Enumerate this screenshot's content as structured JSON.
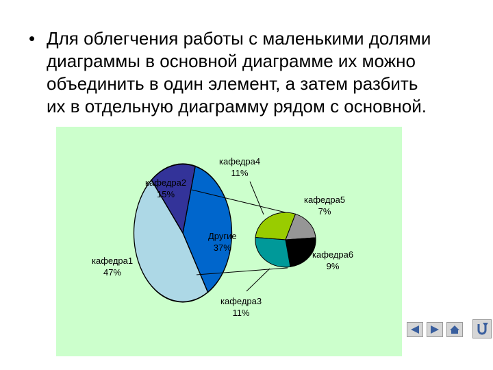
{
  "slide": {
    "bullet": "•",
    "lines": [
      "Для облегчения работы с маленькими долями",
      "диаграммы в основной диаграмме их можно",
      "объединить в один элемент, а затем разбить",
      "их в отдельную диаграмму рядом с основной."
    ]
  },
  "chart_data": {
    "type": "pie",
    "subtype": "pie-of-pie",
    "main": {
      "slices": [
        {
          "label": "кафедра1",
          "value": 47,
          "value_label": "47%",
          "color": "#add8e6"
        },
        {
          "label": "кафедра2",
          "value": 15,
          "value_label": "15%",
          "color": "#333399"
        },
        {
          "label": "Другие",
          "value": 37,
          "value_label": "37%",
          "color": "#0066cc"
        }
      ]
    },
    "secondary": {
      "slices": [
        {
          "label": "кафедра4",
          "value": 11,
          "value_label": "11%",
          "color": "#99cc00"
        },
        {
          "label": "кафедра5",
          "value": 7,
          "value_label": "7%",
          "color": "#969696"
        },
        {
          "label": "кафедра6",
          "value": 9,
          "value_label": "9%",
          "color": "#000000"
        },
        {
          "label": "кафедра3",
          "value": 11,
          "value_label": "11%",
          "color": "#009999"
        }
      ]
    },
    "background": "#ccffcc",
    "legend": "none"
  },
  "nav": {
    "icons": [
      "prev-arrow-icon",
      "next-arrow-icon",
      "home-icon",
      "return-icon"
    ]
  }
}
